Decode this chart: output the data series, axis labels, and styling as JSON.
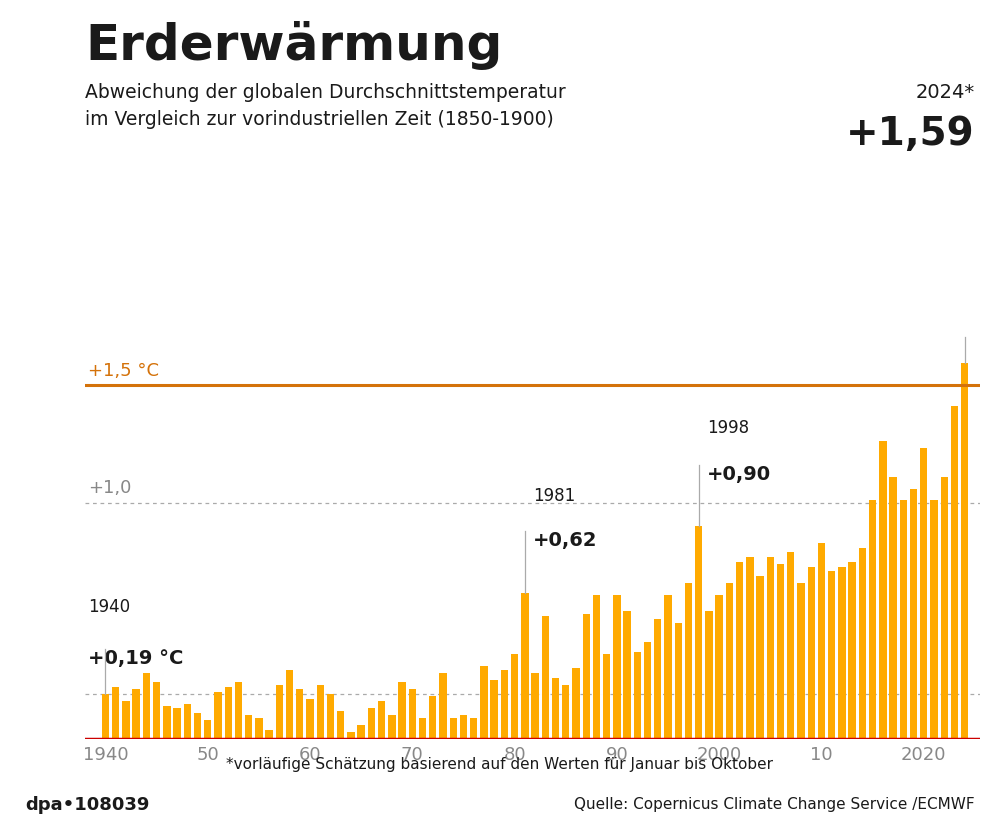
{
  "title_main": "Erderwärmung",
  "subtitle_line1": "Abweichung der globalen Durchschnittstemperatur",
  "subtitle_line2": "im Vergleich zur vorindustriellen Zeit (1850-1900)",
  "annotation_2024_year": "2024*",
  "annotation_2024_val": "+1,59",
  "annotation_1940_year": "1940",
  "annotation_1940_val": "+0,19 °C",
  "annotation_1981_year": "1981",
  "annotation_1981_val": "+0,62",
  "annotation_1998_year": "1998",
  "annotation_1998_val": "+0,90",
  "line_15_label": "+1,5 °C",
  "ytick_label": "+1,0",
  "footer_left": "dpa•108039",
  "footer_right": "Quelle: Copernicus Climate Change Service /ECMWF",
  "footnote": "*vorläufige Schätzung basierend auf den Werten für Januar bis Oktober",
  "bar_color": "#FFAA00",
  "line_15_color": "#D4720A",
  "baseline_color": "#CC0000",
  "bg_color": "#FFFFFF",
  "footer_bg_color": "#DDDDDD",
  "text_color": "#1A1A1A",
  "grid_color": "#AAAAAA",
  "years": [
    1940,
    1941,
    1942,
    1943,
    1944,
    1945,
    1946,
    1947,
    1948,
    1949,
    1950,
    1951,
    1952,
    1953,
    1954,
    1955,
    1956,
    1957,
    1958,
    1959,
    1960,
    1961,
    1962,
    1963,
    1964,
    1965,
    1966,
    1967,
    1968,
    1969,
    1970,
    1971,
    1972,
    1973,
    1974,
    1975,
    1976,
    1977,
    1978,
    1979,
    1980,
    1981,
    1982,
    1983,
    1984,
    1985,
    1986,
    1987,
    1988,
    1989,
    1990,
    1991,
    1992,
    1993,
    1994,
    1995,
    1996,
    1997,
    1998,
    1999,
    2000,
    2001,
    2002,
    2003,
    2004,
    2005,
    2006,
    2007,
    2008,
    2009,
    2010,
    2011,
    2012,
    2013,
    2014,
    2015,
    2016,
    2017,
    2018,
    2019,
    2020,
    2021,
    2022,
    2023,
    2024
  ],
  "values": [
    0.19,
    0.22,
    0.16,
    0.21,
    0.28,
    0.24,
    0.14,
    0.13,
    0.15,
    0.11,
    0.08,
    0.2,
    0.22,
    0.24,
    0.1,
    0.09,
    0.04,
    0.23,
    0.29,
    0.21,
    0.17,
    0.23,
    0.19,
    0.12,
    0.03,
    0.06,
    0.13,
    0.16,
    0.1,
    0.24,
    0.21,
    0.09,
    0.18,
    0.28,
    0.09,
    0.1,
    0.09,
    0.31,
    0.25,
    0.29,
    0.36,
    0.62,
    0.28,
    0.52,
    0.26,
    0.23,
    0.3,
    0.53,
    0.61,
    0.36,
    0.61,
    0.54,
    0.37,
    0.41,
    0.51,
    0.61,
    0.49,
    0.66,
    0.9,
    0.54,
    0.61,
    0.66,
    0.75,
    0.77,
    0.69,
    0.77,
    0.74,
    0.79,
    0.66,
    0.73,
    0.83,
    0.71,
    0.73,
    0.75,
    0.81,
    1.01,
    1.26,
    1.11,
    1.01,
    1.06,
    1.23,
    1.01,
    1.11,
    1.41,
    1.59
  ],
  "ylim": [
    0,
    1.75
  ],
  "xlim": [
    1938.0,
    2025.5
  ]
}
